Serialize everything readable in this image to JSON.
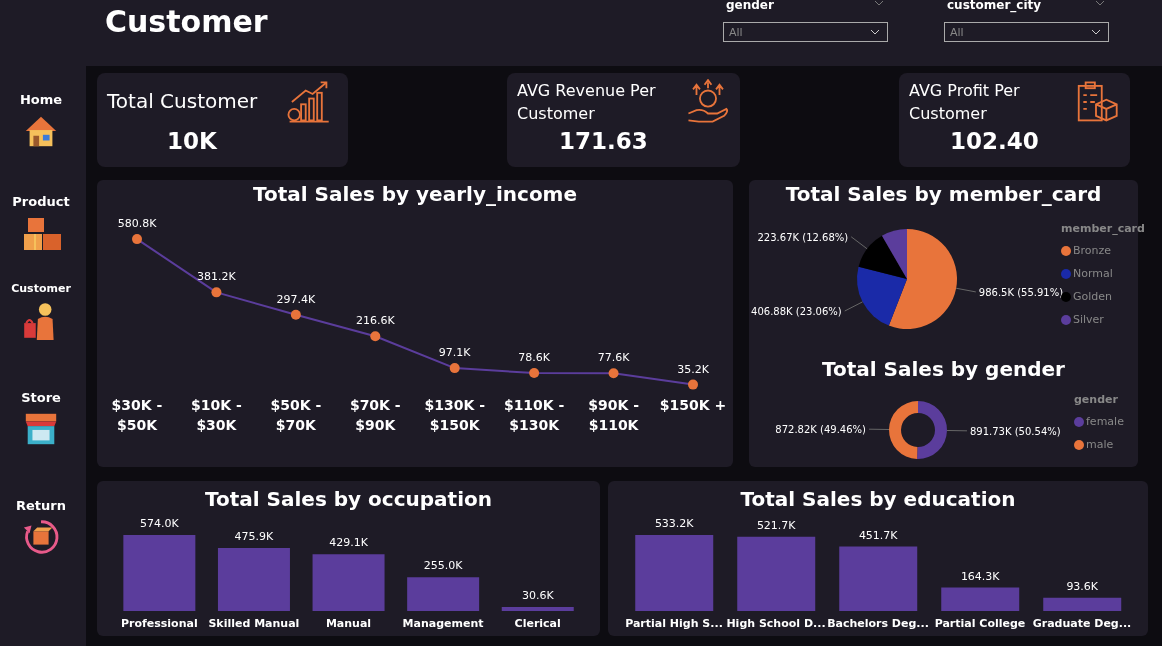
{
  "chart_data": [
    {
      "type": "other",
      "title": "Customer",
      "annotations": [
        "Home",
        "Product",
        "Customer",
        "Store",
        "Return",
        "gender",
        "All",
        "customer_city",
        "All"
      ]
    },
    {
      "type": "other",
      "title": "Total Customer",
      "annotations": [
        "10K"
      ]
    },
    {
      "type": "other",
      "title": "AVG Revenue Per Customer",
      "annotations": [
        "171.63"
      ]
    },
    {
      "type": "other",
      "title": "AVG Profit Per Customer",
      "annotations": [
        "102.40"
      ]
    },
    {
      "type": "line",
      "title": "Total Sales by yearly_income",
      "categories": [
        "$30K - $50K",
        "$10K - $30K",
        "$50K - $70K",
        "$70K - $90K",
        "$130K - $150K",
        "$110K - $130K",
        "$90K - $110K",
        "$150K +"
      ],
      "series": [
        {
          "color": "#5b3d9c",
          "values": [
            580.8,
            381.2,
            297.4,
            216.6,
            97.1,
            78.6,
            77.6,
            35.2
          ],
          "colors": [
            "#e8743b",
            "#e8743b",
            "#e8743b",
            "#e8743b",
            "#e8743b",
            "#e8743b",
            "#e8743b",
            "#e8743b"
          ],
          "value_labels": [
            "580.8K",
            "381.2K",
            "297.4K",
            "216.6K",
            "97.1K",
            "78.6K",
            "77.6K",
            "35.2K"
          ]
        }
      ],
      "marker": "circle",
      "line_style": "solid"
    },
    {
      "type": "pie",
      "title": "Total Sales by member_card",
      "categories": [
        "Bronze",
        "Normal",
        "Golden",
        "Silver"
      ],
      "values": [
        986500,
        406880,
        223670,
        147400
      ],
      "colors": [
        "#e8743b",
        "#1a2aa8",
        "#000000",
        "#5b3d9c"
      ],
      "value_labels": [
        "986.5K (55.91%)",
        "406.88K (23.06%)",
        "223.67K (12.68%)",
        null
      ],
      "legend": "right",
      "legend_title": "member_card"
    },
    {
      "type": "donut",
      "title": "Total Sales by gender",
      "categories": [
        "female",
        "male"
      ],
      "values": [
        891730,
        872820
      ],
      "colors": [
        "#5b3d9c",
        "#e8743b"
      ],
      "value_labels": [
        "891.73K (50.54%)",
        "872.82K (49.46%)"
      ],
      "legend": "right",
      "legend_title": "gender"
    },
    {
      "type": "bar",
      "title": "Total Sales by occupation",
      "categories": [
        "Professional",
        "Skilled Manual",
        "Manual",
        "Management",
        "Clerical"
      ],
      "values": [
        574.0,
        475.9,
        429.1,
        255.0,
        30.6
      ],
      "color": "#5b3d9c",
      "value_labels": [
        "574.0K",
        "475.9K",
        "429.1K",
        "255.0K",
        "30.6K"
      ]
    },
    {
      "type": "bar",
      "title": "Total Sales by education",
      "categories": [
        "Partial High S...",
        "High School D...",
        "Bachelors Deg...",
        "Partial College",
        "Graduate Deg..."
      ],
      "values": [
        533.2,
        521.7,
        451.7,
        164.3,
        93.6
      ],
      "color": "#5b3d9c",
      "value_labels": [
        "533.2K",
        "521.7K",
        "451.7K",
        "164.3K",
        "93.6K"
      ]
    }
  ]
}
